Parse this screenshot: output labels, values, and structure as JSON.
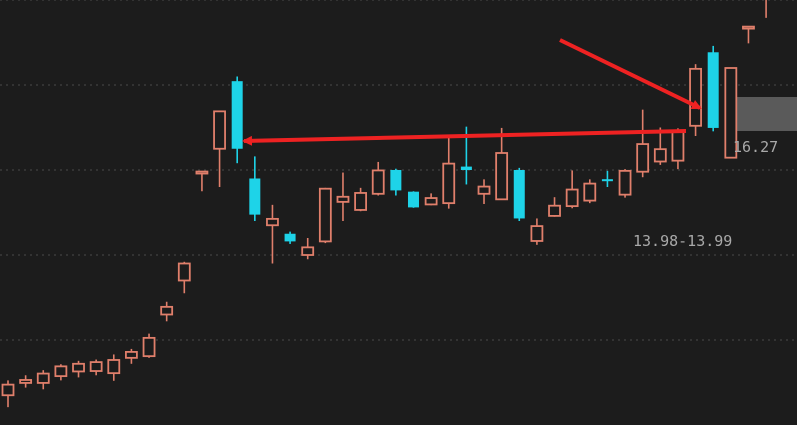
{
  "colors": {
    "background": "#1c1c1c",
    "up": "#e07f6b",
    "down": "#1ed3e8",
    "grid": "#4a4a4a",
    "annotation": "#ee2222",
    "label": "#a9a9a9",
    "highlight_box": "#5a5a5a"
  },
  "chart_data": {
    "type": "candlestick",
    "title": "",
    "xlabel": "",
    "ylabel": "",
    "ylim": [
      8.0,
      18.0
    ],
    "gridlines": [
      10.0,
      12.0,
      14.0,
      16.0,
      18.0
    ],
    "candles": [
      {
        "open": 8.7,
        "high": 9.05,
        "low": 8.42,
        "close": 8.95,
        "dir": "up"
      },
      {
        "open": 8.99,
        "high": 9.17,
        "low": 8.88,
        "close": 9.06,
        "dir": "up"
      },
      {
        "open": 8.99,
        "high": 9.29,
        "low": 8.84,
        "close": 9.21,
        "dir": "up"
      },
      {
        "open": 9.15,
        "high": 9.43,
        "low": 9.05,
        "close": 9.38,
        "dir": "up"
      },
      {
        "open": 9.26,
        "high": 9.51,
        "low": 9.12,
        "close": 9.44,
        "dir": "up"
      },
      {
        "open": 9.27,
        "high": 9.54,
        "low": 9.17,
        "close": 9.48,
        "dir": "up"
      },
      {
        "open": 9.22,
        "high": 9.66,
        "low": 9.04,
        "close": 9.53,
        "dir": "up"
      },
      {
        "open": 9.58,
        "high": 9.79,
        "low": 9.44,
        "close": 9.72,
        "dir": "up"
      },
      {
        "open": 9.62,
        "high": 10.15,
        "low": 9.58,
        "close": 10.05,
        "dir": "up"
      },
      {
        "open": 10.6,
        "high": 10.9,
        "low": 10.44,
        "close": 10.78,
        "dir": "up"
      },
      {
        "open": 11.4,
        "high": 11.84,
        "low": 11.1,
        "close": 11.8,
        "dir": "up"
      },
      {
        "open": 13.94,
        "high": 13.96,
        "low": 13.5,
        "close": 13.94,
        "dir": "up"
      },
      {
        "open": 14.5,
        "high": 15.3,
        "low": 13.6,
        "close": 15.38,
        "dir": "up"
      },
      {
        "open": 16.09,
        "high": 16.2,
        "low": 14.16,
        "close": 14.5,
        "dir": "down"
      },
      {
        "open": 13.8,
        "high": 14.32,
        "low": 12.8,
        "close": 12.95,
        "dir": "down"
      },
      {
        "open": 12.85,
        "high": 13.18,
        "low": 11.8,
        "close": 12.7,
        "dir": "up"
      },
      {
        "open": 12.5,
        "high": 12.55,
        "low": 12.26,
        "close": 12.32,
        "dir": "down"
      },
      {
        "open": 12.0,
        "high": 12.4,
        "low": 11.9,
        "close": 12.18,
        "dir": "up"
      },
      {
        "open": 12.32,
        "high": 13.58,
        "low": 12.28,
        "close": 13.56,
        "dir": "up"
      },
      {
        "open": 13.25,
        "high": 13.94,
        "low": 12.8,
        "close": 13.37,
        "dir": "up"
      },
      {
        "open": 13.06,
        "high": 13.58,
        "low": 13.03,
        "close": 13.46,
        "dir": "up"
      },
      {
        "open": 13.44,
        "high": 14.19,
        "low": 13.4,
        "close": 13.99,
        "dir": "up"
      },
      {
        "open": 14.0,
        "high": 14.03,
        "low": 13.4,
        "close": 13.52,
        "dir": "down"
      },
      {
        "open": 13.49,
        "high": 13.5,
        "low": 13.11,
        "close": 13.12,
        "dir": "down"
      },
      {
        "open": 13.19,
        "high": 13.45,
        "low": 13.17,
        "close": 13.34,
        "dir": "up"
      },
      {
        "open": 13.22,
        "high": 14.8,
        "low": 13.09,
        "close": 14.15,
        "dir": "up"
      },
      {
        "open": 14.08,
        "high": 15.02,
        "low": 13.66,
        "close": 14.0,
        "dir": "down"
      },
      {
        "open": 13.44,
        "high": 13.78,
        "low": 13.2,
        "close": 13.61,
        "dir": "up"
      },
      {
        "open": 13.31,
        "high": 14.99,
        "low": 13.31,
        "close": 14.4,
        "dir": "up"
      },
      {
        "open": 14.0,
        "high": 14.05,
        "low": 12.8,
        "close": 12.86,
        "dir": "down"
      },
      {
        "open": 12.33,
        "high": 12.86,
        "low": 12.24,
        "close": 12.68,
        "dir": "up"
      },
      {
        "open": 12.92,
        "high": 13.36,
        "low": 12.9,
        "close": 13.16,
        "dir": "up"
      },
      {
        "open": 13.15,
        "high": 13.99,
        "low": 13.1,
        "close": 13.54,
        "dir": "up"
      },
      {
        "open": 13.28,
        "high": 13.78,
        "low": 13.22,
        "close": 13.68,
        "dir": "up"
      },
      {
        "open": 13.73,
        "high": 13.98,
        "low": 13.6,
        "close": 13.76,
        "dir": "down"
      },
      {
        "open": 13.42,
        "high": 14.02,
        "low": 13.35,
        "close": 13.98,
        "dir": "up"
      },
      {
        "open": 13.96,
        "high": 15.42,
        "low": 13.83,
        "close": 14.61,
        "dir": "up"
      },
      {
        "open": 14.2,
        "high": 15.0,
        "low": 14.12,
        "close": 14.49,
        "dir": "up"
      },
      {
        "open": 14.22,
        "high": 14.98,
        "low": 14.02,
        "close": 14.91,
        "dir": "up"
      },
      {
        "open": 15.04,
        "high": 16.49,
        "low": 14.8,
        "close": 16.38,
        "dir": "up"
      },
      {
        "open": 16.77,
        "high": 16.92,
        "low": 14.91,
        "close": 14.99,
        "dir": "down"
      },
      {
        "open": 14.29,
        "high": 16.4,
        "low": 14.29,
        "close": 16.4,
        "dir": "up"
      },
      {
        "open": 17.35,
        "high": 17.36,
        "low": 16.98,
        "close": 17.34,
        "dir": "up"
      },
      {
        "open": 18.2,
        "high": 18.4,
        "low": 17.58,
        "close": 18.3,
        "dir": "up"
      }
    ],
    "annotations": {
      "price_label_high": "16.27",
      "price_label_range": "13.98-13.99"
    }
  }
}
